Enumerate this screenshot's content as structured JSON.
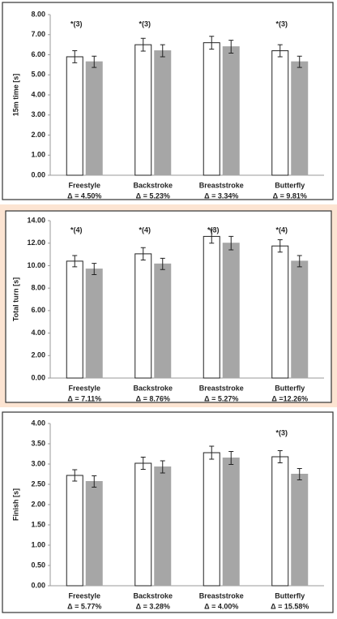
{
  "chart_data": [
    {
      "type": "bar",
      "y_label": "15m time [s]",
      "categories": [
        "Freestyle",
        "Backstroke",
        "Breaststroke",
        "Butterfly"
      ],
      "category_notes": [
        "Δ = 4.50%",
        "Δ = 5.23%",
        "Δ = 3.34%",
        "Δ = 9.81%"
      ],
      "annotations": [
        "*(3)",
        "*(3)",
        null,
        "*(3)"
      ],
      "series": [
        {
          "color": "#ffffff",
          "values": [
            5.9,
            6.5,
            6.6,
            6.2
          ],
          "errors": [
            0.3,
            0.32,
            0.32,
            0.3
          ]
        },
        {
          "color": "#a6a6a6",
          "values": [
            5.65,
            6.2,
            6.4,
            5.65
          ],
          "errors": [
            0.28,
            0.3,
            0.32,
            0.28
          ]
        }
      ],
      "ylim": [
        0,
        8
      ],
      "yticks": [
        {
          "value": 0,
          "label": "0.00"
        },
        {
          "value": 1,
          "label": "1.00"
        },
        {
          "value": 2,
          "label": "2.00"
        },
        {
          "value": 3,
          "label": "3.00"
        },
        {
          "value": 4,
          "label": "4.00"
        },
        {
          "value": 5,
          "label": "5.00"
        },
        {
          "value": 6,
          "label": "6.00"
        },
        {
          "value": 7,
          "label": "7.00"
        },
        {
          "value": 8,
          "label": "8.00"
        }
      ]
    },
    {
      "type": "bar",
      "y_label": "Total turn [s]",
      "categories": [
        "Freestyle",
        "Backstroke",
        "Breaststroke",
        "Butterfly"
      ],
      "category_notes": [
        "Δ = 7.11%",
        "Δ = 8.76%",
        "Δ = 5.27%",
        "Δ =12.26%"
      ],
      "annotations": [
        "*(4)",
        "*(4)",
        "*(3)",
        "*(4)"
      ],
      "series": [
        {
          "color": "#ffffff",
          "values": [
            10.4,
            11.05,
            12.6,
            11.75
          ],
          "errors": [
            0.5,
            0.55,
            0.6,
            0.55
          ]
        },
        {
          "color": "#a6a6a6",
          "values": [
            9.7,
            10.15,
            12.0,
            10.4
          ],
          "errors": [
            0.5,
            0.5,
            0.6,
            0.5
          ]
        }
      ],
      "ylim": [
        0,
        14
      ],
      "yticks": [
        {
          "value": 0,
          "label": "0.00"
        },
        {
          "value": 2,
          "label": "2.00"
        },
        {
          "value": 4,
          "label": "4.00"
        },
        {
          "value": 6,
          "label": "6.00"
        },
        {
          "value": 8,
          "label": "8.00"
        },
        {
          "value": 10,
          "label": "10.00"
        },
        {
          "value": 12,
          "label": "12.00"
        },
        {
          "value": 14,
          "label": "14.00"
        }
      ]
    },
    {
      "type": "bar",
      "y_label": "Finish [s]",
      "categories": [
        "Freestyle",
        "Backstroke",
        "Breaststroke",
        "Butterfly"
      ],
      "category_notes": [
        "Δ = 5.77%",
        "Δ = 3.28%",
        "Δ = 4.00%",
        "Δ = 15.58%"
      ],
      "annotations": [
        null,
        null,
        null,
        "*(3)"
      ],
      "series": [
        {
          "color": "#ffffff",
          "values": [
            2.72,
            3.02,
            3.28,
            3.18
          ],
          "errors": [
            0.14,
            0.15,
            0.16,
            0.15
          ]
        },
        {
          "color": "#a6a6a6",
          "values": [
            2.57,
            2.93,
            3.15,
            2.75
          ],
          "errors": [
            0.14,
            0.15,
            0.16,
            0.14
          ]
        }
      ],
      "ylim": [
        0,
        4
      ],
      "yticks": [
        {
          "value": 0,
          "label": "0.00"
        },
        {
          "value": 0.5,
          "label": "0.50"
        },
        {
          "value": 1,
          "label": "1.00"
        },
        {
          "value": 1.5,
          "label": "1.50"
        },
        {
          "value": 2,
          "label": "2.00"
        },
        {
          "value": 2.5,
          "label": "2.50"
        },
        {
          "value": 3,
          "label": "3.00"
        },
        {
          "value": 3.5,
          "label": "3.50"
        },
        {
          "value": 4,
          "label": "4.00"
        }
      ]
    }
  ]
}
